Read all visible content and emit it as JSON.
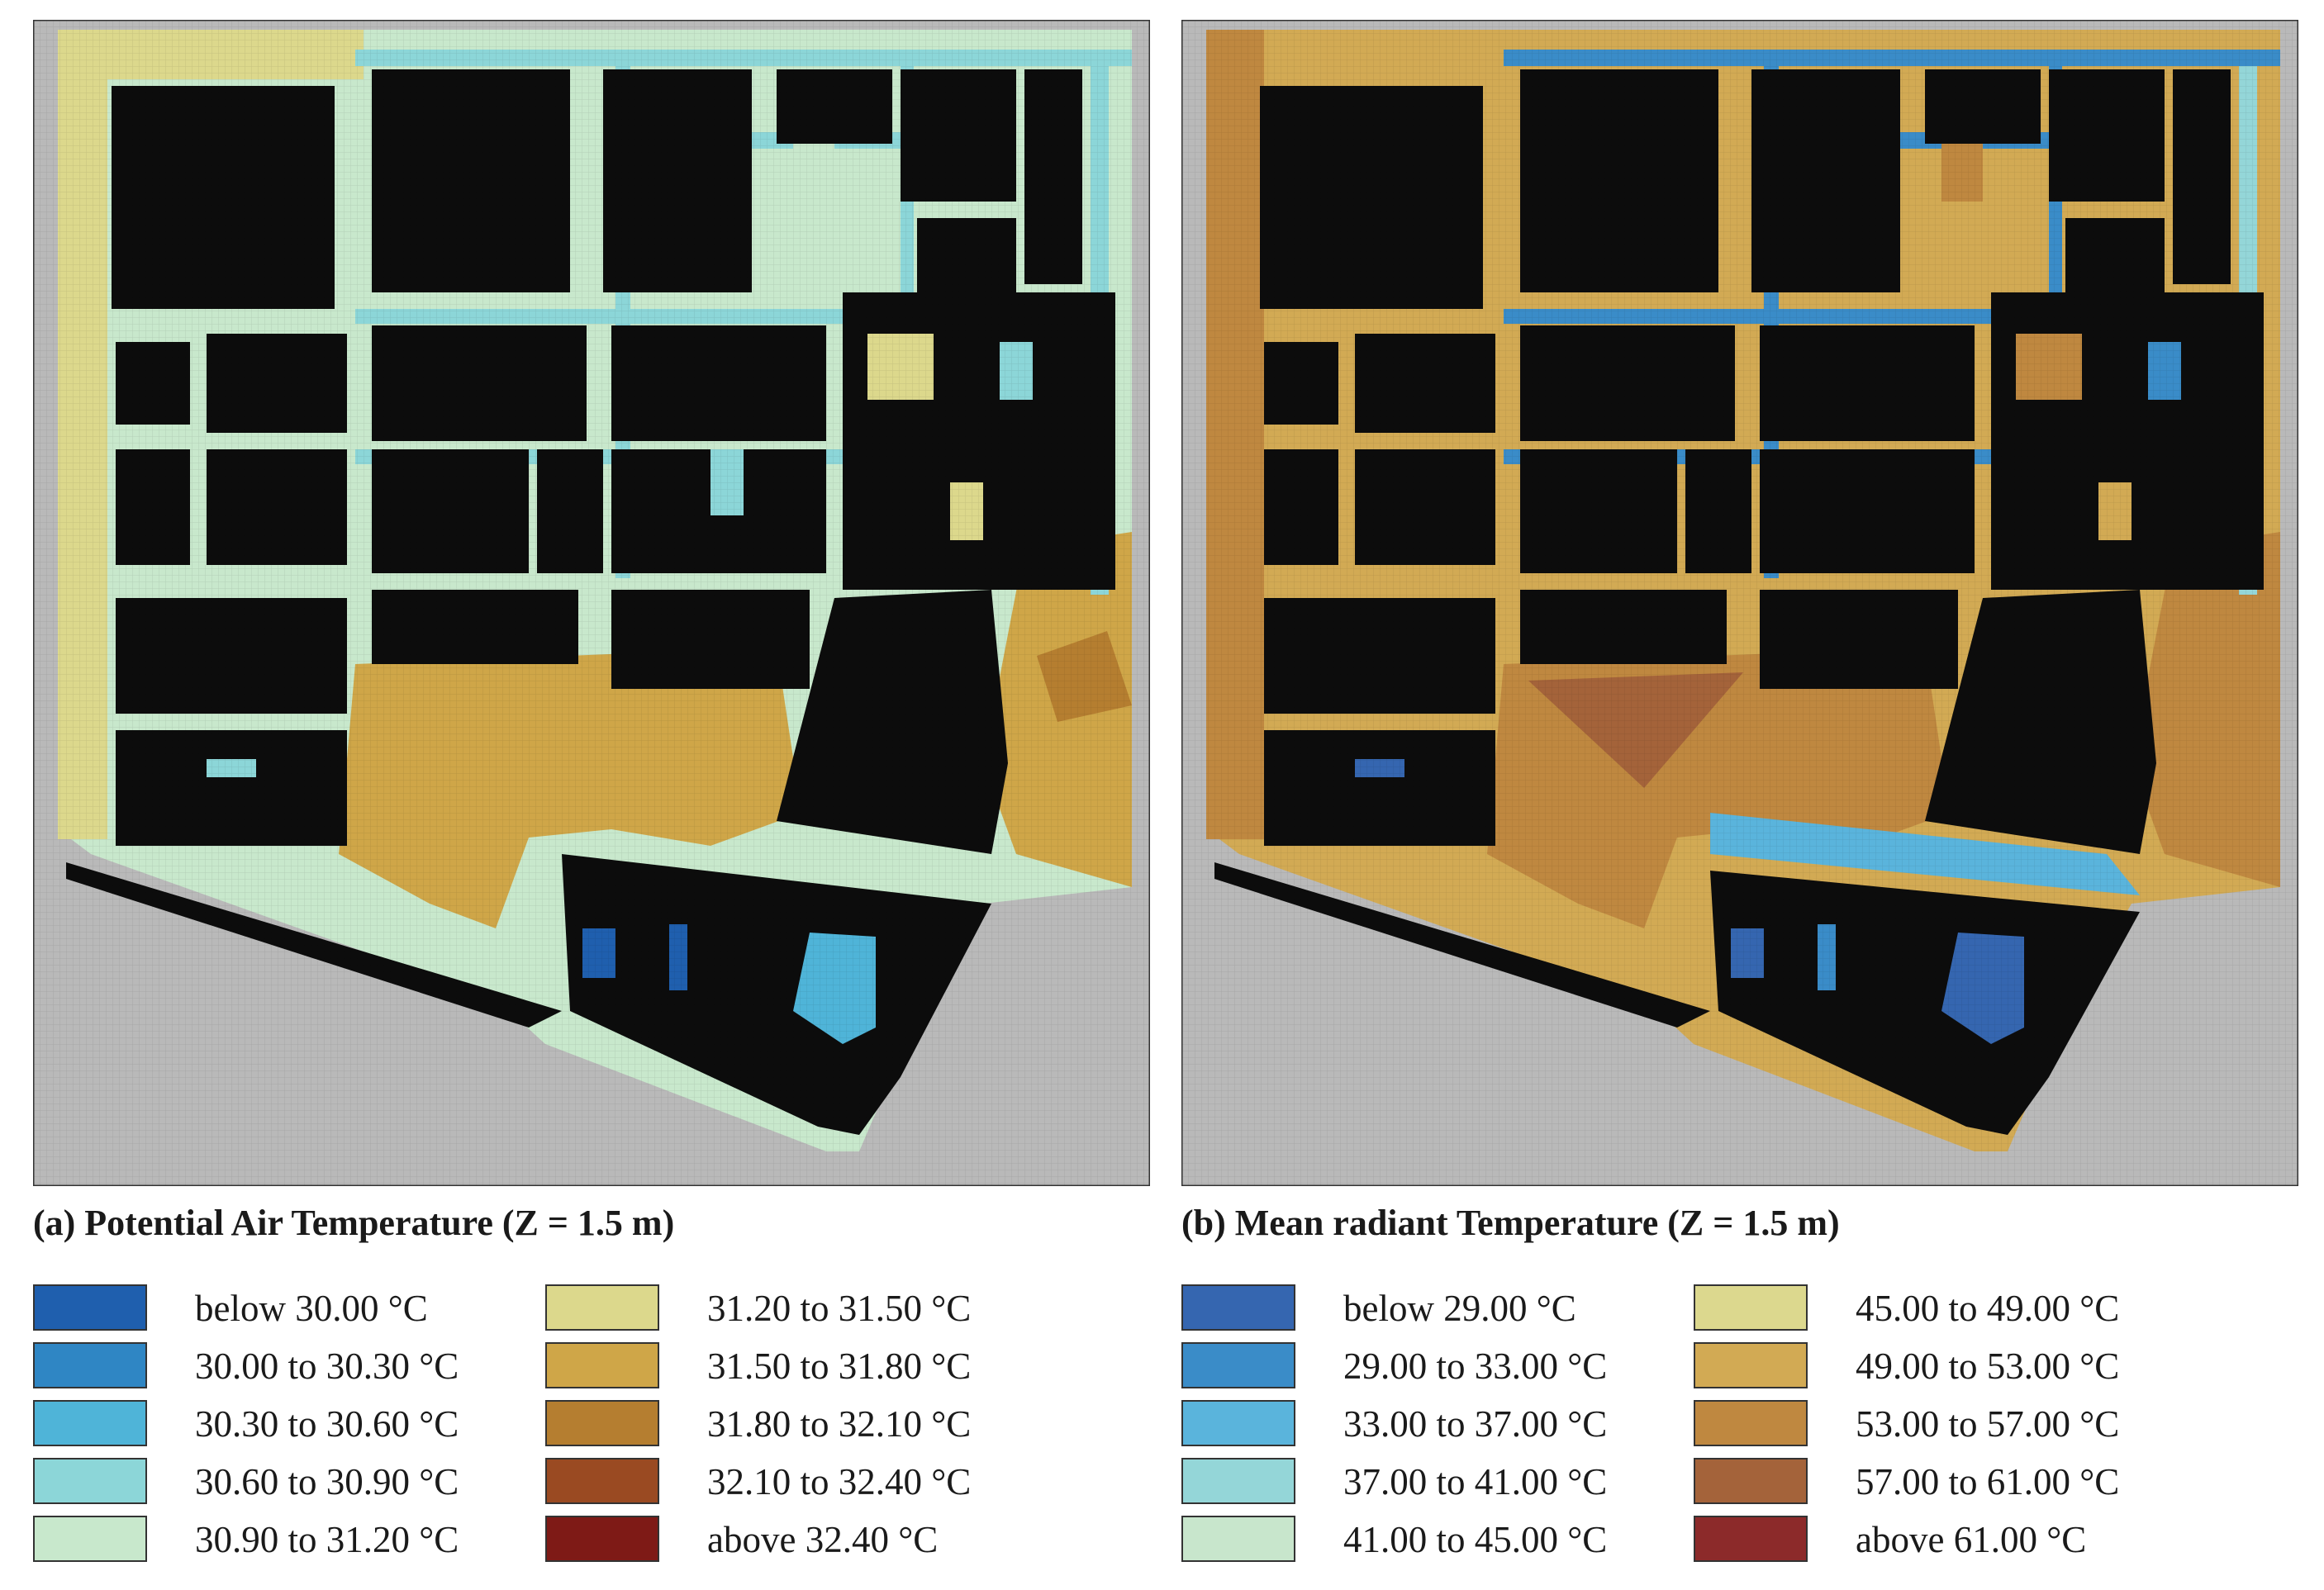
{
  "panels": [
    {
      "caption": "(a)  Potential Air Temperature (Z = 1.5 m)",
      "legend": [
        {
          "label": "below 30.00 °C",
          "color": "#1f5fae"
        },
        {
          "label": "30.00 to 30.30 °C",
          "color": "#2f86c4"
        },
        {
          "label": "30.30 to 30.60 °C",
          "color": "#4fb4d8"
        },
        {
          "label": "30.60 to 30.90 °C",
          "color": "#8cd6d8"
        },
        {
          "label": "30.90 to 31.20 °C",
          "color": "#c8e8cc"
        },
        {
          "label": "31.20 to 31.50 °C",
          "color": "#dcd88c"
        },
        {
          "label": "31.50 to 31.80 °C",
          "color": "#cfa648"
        },
        {
          "label": "31.80 to 32.10 °C",
          "color": "#b57e30"
        },
        {
          "label": "32.10 to 32.40 °C",
          "color": "#9a4a22"
        },
        {
          "label": "above 32.40 °C",
          "color": "#7e1a16"
        }
      ]
    },
    {
      "caption": "(b)  Mean radiant Temperature (Z = 1.5 m)",
      "legend": [
        {
          "label": "below 29.00 °C",
          "color": "#3566b0"
        },
        {
          "label": "29.00 to 33.00 °C",
          "color": "#3a8cc8"
        },
        {
          "label": "33.00 to 37.00 °C",
          "color": "#5ab4dc"
        },
        {
          "label": "37.00 to 41.00 °C",
          "color": "#94d6d8"
        },
        {
          "label": "41.00 to 45.00 °C",
          "color": "#c8e6cc"
        },
        {
          "label": "45.00 to 49.00 °C",
          "color": "#dcd88e"
        },
        {
          "label": "49.00 to 53.00 °C",
          "color": "#d2aa54"
        },
        {
          "label": "53.00 to 57.00 °C",
          "color": "#bf8840"
        },
        {
          "label": "57.00 to 61.00 °C",
          "color": "#a4633a"
        },
        {
          "label": "above 61.00 °C",
          "color": "#8c2a2a"
        }
      ]
    }
  ]
}
